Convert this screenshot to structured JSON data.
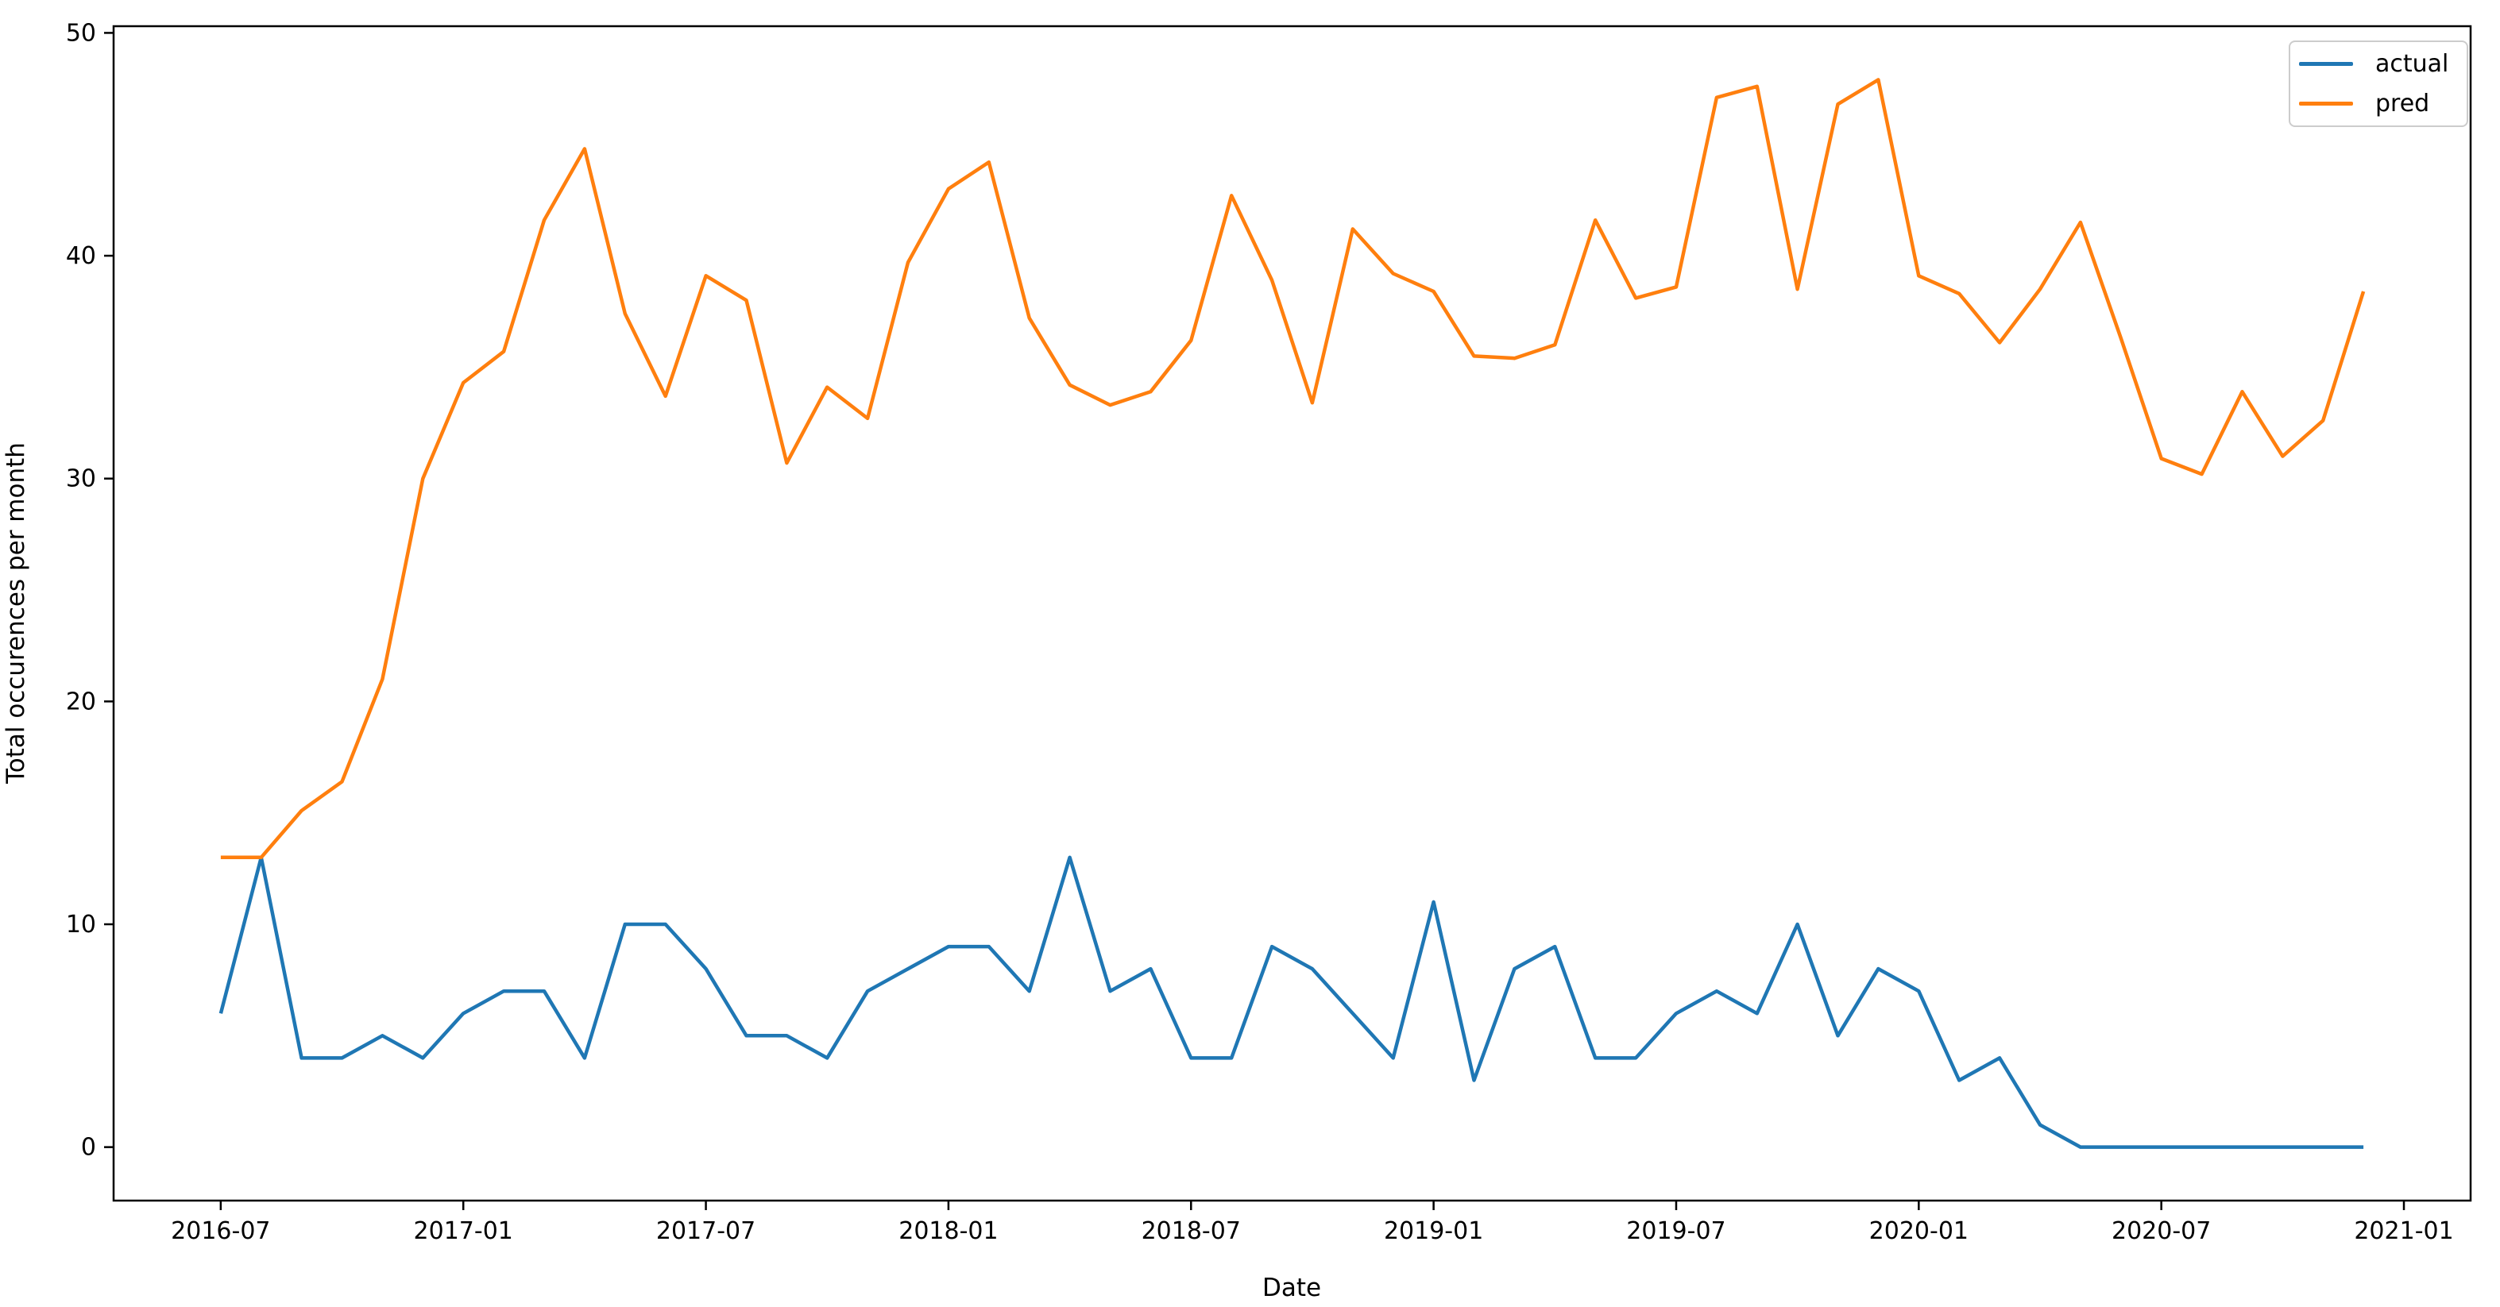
{
  "figure": {
    "background": "#ffffff",
    "text_color": "#000000"
  },
  "chart_data": {
    "type": "line",
    "title": "",
    "xlabel": "Date",
    "ylabel": "Total occurences per month",
    "grid": false,
    "axis_color": "#000000",
    "x_categories": [
      "2016-07",
      "2016-08",
      "2016-09",
      "2016-10",
      "2016-11",
      "2016-12",
      "2017-01",
      "2017-02",
      "2017-03",
      "2017-04",
      "2017-05",
      "2017-06",
      "2017-07",
      "2017-08",
      "2017-09",
      "2017-10",
      "2017-11",
      "2017-12",
      "2018-01",
      "2018-02",
      "2018-03",
      "2018-04",
      "2018-05",
      "2018-06",
      "2018-07",
      "2018-08",
      "2018-09",
      "2018-10",
      "2018-11",
      "2018-12",
      "2019-01",
      "2019-02",
      "2019-03",
      "2019-04",
      "2019-05",
      "2019-06",
      "2019-07",
      "2019-08",
      "2019-09",
      "2019-10",
      "2019-11",
      "2019-12",
      "2020-01",
      "2020-02",
      "2020-03",
      "2020-04",
      "2020-05",
      "2020-06",
      "2020-07",
      "2020-08",
      "2020-09",
      "2020-10",
      "2020-11",
      "2020-12"
    ],
    "series": [
      {
        "name": "actual",
        "color": "#1f77b4",
        "values": [
          6,
          13,
          4,
          4,
          5,
          4,
          6,
          7,
          7,
          4,
          10,
          10,
          8,
          5,
          5,
          4,
          7,
          8,
          9,
          9,
          7,
          13,
          7,
          8,
          4,
          4,
          9,
          8,
          6,
          4,
          11,
          3,
          8,
          9,
          4,
          4,
          6,
          7,
          6,
          10,
          5,
          8,
          7,
          3,
          4,
          1,
          0,
          0,
          0,
          0,
          0,
          0,
          0,
          0
        ]
      },
      {
        "name": "pred",
        "color": "#ff7f0e",
        "values": [
          13.0,
          13.0,
          15.1,
          16.4,
          21.0,
          30.0,
          34.3,
          35.7,
          41.6,
          44.8,
          37.4,
          33.7,
          39.1,
          38.0,
          30.7,
          34.1,
          32.7,
          39.7,
          43.0,
          44.2,
          37.2,
          34.2,
          33.3,
          33.9,
          36.2,
          42.7,
          38.9,
          33.4,
          41.2,
          39.2,
          38.4,
          35.5,
          35.4,
          36.0,
          41.6,
          38.1,
          38.6,
          47.1,
          47.6,
          38.5,
          46.8,
          47.9,
          39.1,
          38.3,
          36.1,
          38.5,
          41.5,
          36.3,
          30.9,
          30.2,
          33.9,
          31.0,
          32.6,
          38.4
        ]
      }
    ],
    "xticks": {
      "indices": [
        0,
        6,
        12,
        18,
        24,
        30,
        36,
        42,
        48,
        54
      ],
      "labels": [
        "2016-07",
        "2017-01",
        "2017-07",
        "2018-01",
        "2018-07",
        "2019-01",
        "2019-07",
        "2020-01",
        "2020-07",
        "2021-01"
      ]
    },
    "yticks": [
      0,
      10,
      20,
      30,
      40,
      50
    ],
    "ylim": [
      -2.4,
      50.3
    ],
    "xlim_month_index": [
      -2.65,
      55.65
    ],
    "legend": {
      "position": "upper-right",
      "border_color": "#cccccc",
      "entries": [
        "actual",
        "pred"
      ]
    }
  }
}
